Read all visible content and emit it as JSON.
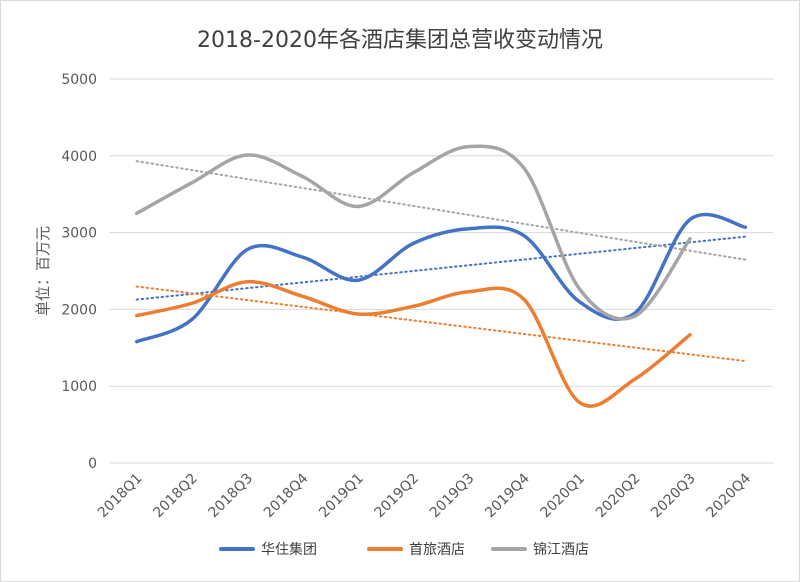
{
  "chart_data": {
    "type": "line",
    "title": "2018-2020年各酒店集团总营收变动情况",
    "ylabel": "单位：百万元",
    "xlabel": "",
    "ylim": [
      0,
      5000
    ],
    "yticks": [
      "0",
      "1000",
      "2000",
      "3000",
      "4000",
      "5000"
    ],
    "categories": [
      "2018Q1",
      "2018Q2",
      "2018Q3",
      "2018Q4",
      "2019Q1",
      "2019Q2",
      "2019Q3",
      "2019Q4",
      "2020Q1",
      "2020Q2",
      "2020Q3",
      "2020Q4"
    ],
    "grid": true,
    "legend_position": "bottom",
    "trendlines": true,
    "series": [
      {
        "name": "华住集团",
        "color": "#4472C4",
        "values": [
          1580,
          1870,
          2780,
          2680,
          2380,
          2860,
          3050,
          2960,
          2100,
          1950,
          3170,
          3070
        ]
      },
      {
        "name": "首旅酒店",
        "color": "#ED7D31",
        "values": [
          1920,
          2080,
          2360,
          2170,
          1940,
          2040,
          2230,
          2130,
          790,
          1090,
          1670,
          null
        ]
      },
      {
        "name": "锦江酒店",
        "color": "#A5A5A5",
        "values": [
          3250,
          3650,
          4010,
          3730,
          3340,
          3780,
          4120,
          3840,
          2270,
          1910,
          2920,
          null
        ]
      }
    ]
  }
}
